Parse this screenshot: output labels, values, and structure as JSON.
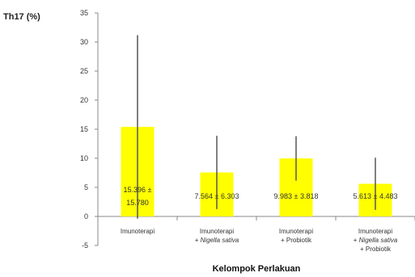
{
  "chart_data": {
    "type": "bar",
    "title": "",
    "ylabel": "Th17 (%)",
    "xlabel": "Kelompok Perlakuan",
    "ylim": [
      -5,
      35
    ],
    "yticks": [
      -5,
      0,
      5,
      10,
      15,
      20,
      25,
      30,
      35
    ],
    "grid": false,
    "legend": "none",
    "bar_color": "#ffff00",
    "error_color": "#555555",
    "categories": [
      [
        "Imunoterapi"
      ],
      [
        "Imunoterapi",
        "+ Nigella sativa"
      ],
      [
        "Imunoterapi",
        "+ Probiotik"
      ],
      [
        "Imunoterapi",
        "+ Nigella sativa",
        "+ Probiotik"
      ]
    ],
    "values": [
      15.396,
      7.564,
      9.983,
      5.613
    ],
    "errors": [
      15.78,
      6.303,
      3.818,
      4.483
    ],
    "data_labels": [
      [
        "15.396 ±",
        "15.780"
      ],
      [
        "7.564 ± 6.303"
      ],
      [
        "9.983 ± 3.818"
      ],
      [
        "5.613 ± 4.483"
      ]
    ]
  }
}
